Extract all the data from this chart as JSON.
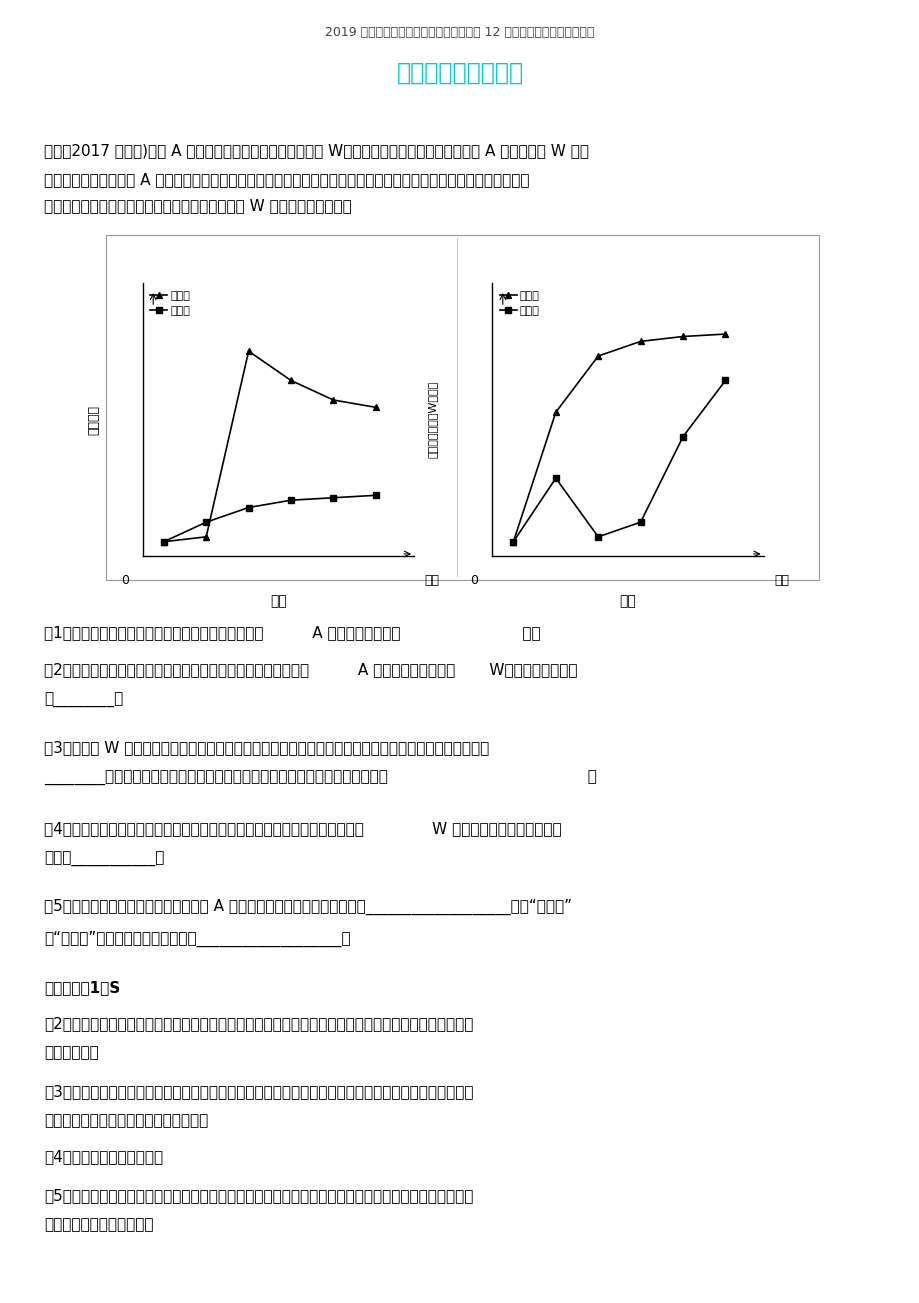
{
  "header": "2019 高考生物三轮冲刺大题提分大题精做 12 植物有效成分的提取含分析",
  "title": "植物有效成分的提取",
  "title_color": "#00CCCC",
  "bg_color": "#FFFFFF",
  "text_color": "#000000",
  "body_text_lines": [
    "例：（2017 海南卷)绻藻 A 是某种单细胞绻藻，能够合成物质 W。某小组为研究氮营养缺少对绻藻 A 增殖及物质 W 累计",
    "的影响，将等量的绻藻 A 分别接种在氮营养缺少（实验组）和氮营养正常（比较组）的两瓶培育液中，并在适合温度和",
    "必定光强下培育。准时取样并检测细胞浓度和物质 W 的含量，结果如图。"
  ],
  "q1": "（1）从图甲可知，在氮营养正常培育液的瓶中，绻藻          A 的种群增添曲线呈                         型。",
  "q2a": "（2）综合图甲和图乙的信息可知，在生产上，若要用少许的绻藻          A 获取尽可能多的物质       W，能够采纳的举措",
  "q2b": "是________。",
  "q3a": "（3）若物质 W 是类胡萨卜素，依据类胡萨卜素不易挥发和易于溶于有机溶剂的特色，应选择的提取方法是",
  "q3b": "________。用纸层析法能够将类胡萨卜素与叶绻素分开，纸层析法分别的原理是                                         。",
  "q4a": "（4）在以上研究的基础上，某人拟设计实验进一步研究氮营养缺少程度对物质              W 累积的影响，则该实验的自",
  "q4b": "变量是___________。",
  "q5a": "（5）与在光照条件下对比，若要使绻藻 A 在黑暗条件下增殖，需要为其供应___________________（填“葡萄糖”",
  "q5b": "或“纴维素”）作为营养物质，原由是___________________。",
  "ans_header": "【答案】（1）S",
  "ans2a": "（2）先将少许绻藻放在氮营养正常的培育液培育，等到细胞浓度最高时集中采集，再放在氮营养缺少的培",
  "ans2b": "育液持续培育",
  "ans3a": "（3）萤取类胡萨卜素和叶绻素在层析液（有机溶剂）中的溶解度不一样，溶解度高的随层析液在滤纸上的",
  "ans3b": "扩散速度快，反之则慢，从而将它们分别",
  "ans4": "（4）培育基中的氮营养浓度",
  "ans5a": "（5）葡萄糖在黑暗下，绻藻不可以进行光合作用合成糖类（有机物），需要汲取葡萄糖为营养物质，而纴",
  "ans5b": "维素不可以被绻藻汲取利用"
}
